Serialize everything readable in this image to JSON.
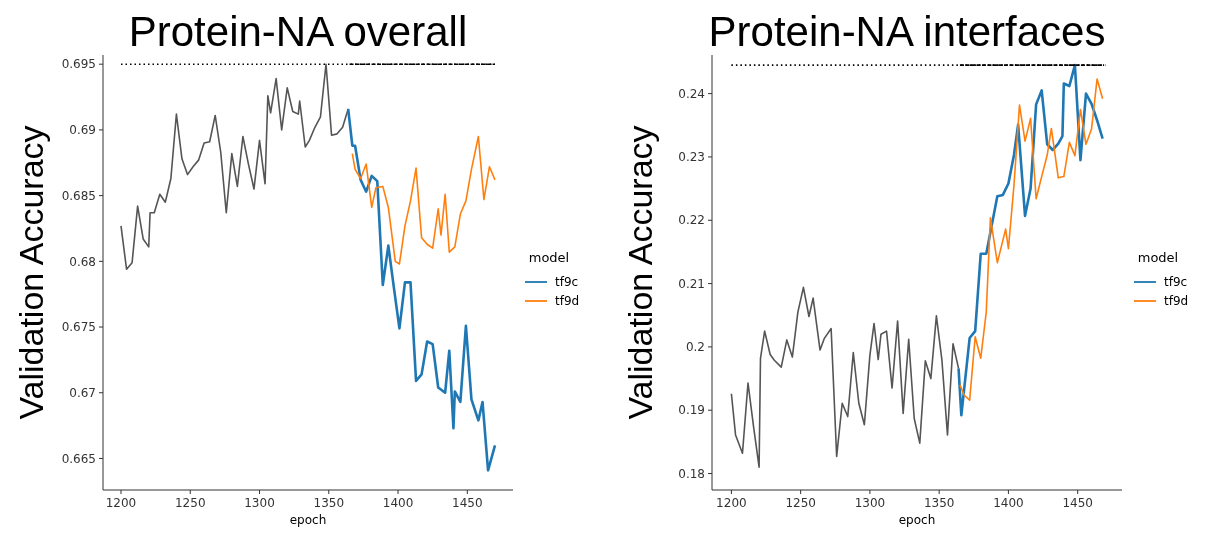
{
  "chart_data": [
    {
      "type": "line",
      "title": "Protein-NA overall",
      "xlabel": "epoch",
      "ylabel": "Validation Accuracy",
      "legend_title": "model",
      "legend": "right",
      "xlim": [
        1187,
        1483
      ],
      "xticks": [
        1200,
        1250,
        1300,
        1350,
        1400,
        1450
      ],
      "ylim": [
        0.6626,
        0.6957
      ],
      "yticks": [
        0.665,
        0.67,
        0.675,
        0.68,
        0.685,
        0.69,
        0.695
      ],
      "series": [
        {
          "color": "#555555",
          "x": [
            1200,
            1204,
            1208,
            1212,
            1216,
            1220,
            1221,
            1224,
            1228,
            1232,
            1236,
            1240,
            1244,
            1248,
            1252,
            1256,
            1260,
            1264,
            1268,
            1272,
            1276,
            1280,
            1284,
            1288,
            1292,
            1296,
            1300,
            1304,
            1306,
            1308,
            1312,
            1316,
            1320,
            1324,
            1328,
            1329,
            1333,
            1336,
            1340,
            1344,
            1348,
            1352,
            1356,
            1360,
            1364
          ],
          "values": [
            0.6827,
            0.6794,
            0.6799,
            0.6842,
            0.6817,
            0.6811,
            0.6837,
            0.6837,
            0.6851,
            0.6845,
            0.6863,
            0.6912,
            0.6878,
            0.6866,
            0.6872,
            0.6877,
            0.689,
            0.6891,
            0.6911,
            0.6883,
            0.6837,
            0.6882,
            0.6857,
            0.6895,
            0.6874,
            0.6855,
            0.6892,
            0.6859,
            0.6926,
            0.6913,
            0.6939,
            0.69,
            0.6932,
            0.6914,
            0.6912,
            0.6922,
            0.6887,
            0.6892,
            0.6902,
            0.691,
            0.695,
            0.6896,
            0.6897,
            0.6902,
            0.6916
          ]
        },
        {
          "name": "tf9c",
          "color": "#1f77b4",
          "x": [
            1364,
            1367,
            1369,
            1373,
            1377,
            1381,
            1385,
            1389,
            1393,
            1397,
            1401,
            1405,
            1409,
            1413,
            1417,
            1421,
            1425,
            1429,
            1434,
            1437,
            1440,
            1441,
            1445,
            1449,
            1453,
            1458,
            1461,
            1465,
            1470
          ],
          "values": [
            0.6916,
            0.6888,
            0.6888,
            0.6862,
            0.6853,
            0.6865,
            0.6861,
            0.6782,
            0.6812,
            0.678,
            0.6749,
            0.6784,
            0.6784,
            0.6709,
            0.6714,
            0.6739,
            0.6737,
            0.6704,
            0.67,
            0.6732,
            0.6673,
            0.6701,
            0.6693,
            0.6751,
            0.6695,
            0.6679,
            0.6693,
            0.6641,
            0.666
          ]
        },
        {
          "name": "tf9d",
          "color": "#ff7f0e",
          "x": [
            1367,
            1369,
            1373,
            1377,
            1381,
            1384,
            1389,
            1393,
            1398,
            1401,
            1405,
            1409,
            1413,
            1417,
            1421,
            1425,
            1429,
            1431,
            1434,
            1437,
            1441,
            1445,
            1449,
            1453,
            1458,
            1462,
            1466,
            1470
          ],
          "values": [
            0.6882,
            0.687,
            0.6863,
            0.6874,
            0.6841,
            0.6856,
            0.6857,
            0.6841,
            0.68,
            0.6798,
            0.6827,
            0.6846,
            0.6871,
            0.6818,
            0.6813,
            0.681,
            0.684,
            0.682,
            0.6851,
            0.6807,
            0.6811,
            0.6836,
            0.6846,
            0.687,
            0.6895,
            0.6847,
            0.6872,
            0.6862
          ]
        },
        {
          "color": "#000000",
          "line_style": "dotted",
          "x": [
            1200,
            1470
          ],
          "values": [
            0.695,
            0.695
          ]
        },
        {
          "color": "#000000",
          "line_style": "dashed",
          "x": [
            1365,
            1470
          ],
          "values": [
            0.695,
            0.695
          ]
        }
      ]
    },
    {
      "type": "line",
      "title": "Protein-NA interfaces",
      "xlabel": "epoch",
      "ylabel": "Validation Accuracy",
      "legend_title": "model",
      "legend": "right",
      "xlim": [
        1186,
        1482
      ],
      "xticks": [
        1200,
        1250,
        1300,
        1350,
        1400,
        1450
      ],
      "ylim": [
        0.1774,
        0.2461
      ],
      "yticks": [
        0.18,
        0.19,
        0.2,
        0.21,
        0.22,
        0.23,
        0.24
      ],
      "series": [
        {
          "color": "#555555",
          "x": [
            1200,
            1203,
            1208,
            1212,
            1216,
            1220,
            1221,
            1224,
            1228,
            1231,
            1236,
            1240,
            1244,
            1248,
            1252,
            1256,
            1259,
            1264,
            1267,
            1272,
            1276,
            1280,
            1284,
            1288,
            1292,
            1296,
            1300,
            1303,
            1306,
            1308,
            1312,
            1316,
            1320,
            1324,
            1328,
            1332,
            1336,
            1340,
            1344,
            1348,
            1352,
            1356,
            1360,
            1364
          ],
          "values": [
            0.1926,
            0.1861,
            0.1832,
            0.1943,
            0.1874,
            0.181,
            0.1982,
            0.2025,
            0.1988,
            0.1979,
            0.1968,
            0.2011,
            0.1984,
            0.2055,
            0.2094,
            0.2048,
            0.2077,
            0.1995,
            0.2013,
            0.2029,
            0.1827,
            0.1911,
            0.189,
            0.1991,
            0.1911,
            0.1877,
            0.1987,
            0.2037,
            0.198,
            0.202,
            0.2025,
            0.1935,
            0.2041,
            0.1895,
            0.2012,
            0.1887,
            0.1848,
            0.1978,
            0.195,
            0.2049,
            0.1979,
            0.1861,
            0.2005,
            0.1966
          ]
        },
        {
          "name": "tf9c",
          "color": "#1f77b4",
          "x": [
            1364,
            1366,
            1372,
            1376,
            1380,
            1384,
            1387,
            1392,
            1396,
            1400,
            1404,
            1407,
            1412,
            1416,
            1420,
            1424,
            1428,
            1432,
            1436,
            1439,
            1440,
            1444,
            1448,
            1452,
            1456,
            1460,
            1464,
            1468
          ],
          "values": [
            0.1966,
            0.1892,
            0.2014,
            0.2025,
            0.2147,
            0.2147,
            0.2181,
            0.2238,
            0.224,
            0.2258,
            0.2303,
            0.2351,
            0.2207,
            0.225,
            0.2383,
            0.2405,
            0.232,
            0.2311,
            0.2321,
            0.2333,
            0.2416,
            0.2412,
            0.2445,
            0.2295,
            0.24,
            0.2384,
            0.2358,
            0.2329
          ]
        },
        {
          "name": "tf9d",
          "color": "#ff7f0e",
          "x": [
            1365,
            1368,
            1372,
            1376,
            1380,
            1384,
            1387,
            1392,
            1398,
            1400,
            1404,
            1408,
            1412,
            1416,
            1420,
            1424,
            1428,
            1431,
            1436,
            1440,
            1444,
            1448,
            1452,
            1456,
            1460,
            1464,
            1468
          ],
          "values": [
            0.194,
            0.1924,
            0.1916,
            0.2016,
            0.1982,
            0.2055,
            0.2204,
            0.2133,
            0.2186,
            0.2155,
            0.2255,
            0.2382,
            0.2325,
            0.2361,
            0.2234,
            0.2269,
            0.2303,
            0.2345,
            0.2267,
            0.2269,
            0.2323,
            0.2302,
            0.2375,
            0.232,
            0.2344,
            0.2423,
            0.2392
          ]
        },
        {
          "color": "#000000",
          "line_style": "dotted",
          "x": [
            1200,
            1470
          ],
          "values": [
            0.2445,
            0.2445
          ]
        },
        {
          "color": "#000000",
          "line_style": "dashed",
          "x": [
            1365,
            1469
          ],
          "values": [
            0.2445,
            0.2445
          ]
        }
      ]
    }
  ]
}
